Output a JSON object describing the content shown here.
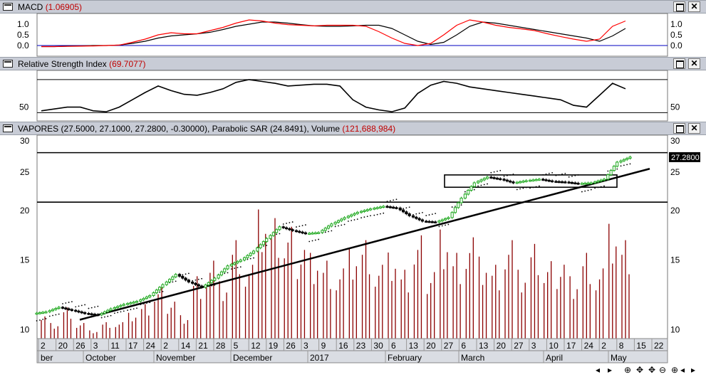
{
  "panels": {
    "macd": {
      "title": "MACD",
      "value": "(1.06905)",
      "ticks": [
        "1.0",
        "0.5",
        "0.0"
      ]
    },
    "rsi": {
      "title": "Relative Strength Index",
      "value": "(69.7077)",
      "ticks": [
        "50"
      ]
    },
    "price": {
      "title": "VAPORES (27.5000, 27.1000, 27.2800, -0.30000), Parabolic SAR (24.8491), Volume",
      "value": "(121,688,984)",
      "ticks": [
        "30",
        "25",
        "20",
        "15",
        "10"
      ],
      "last_price_label": "27.2800"
    }
  },
  "date_axis": {
    "day_labels": [
      "2",
      "20",
      "26",
      "3",
      "11",
      "17",
      "24",
      "2",
      "14",
      "21",
      "28",
      "5",
      "12",
      "19",
      "26",
      "3",
      "9",
      "16",
      "23",
      "30",
      "6",
      "13",
      "20",
      "27",
      "6",
      "13",
      "20",
      "27",
      "3",
      "10",
      "17",
      "24",
      "2",
      "8",
      "15",
      "22"
    ],
    "month_labels": [
      "ber",
      "October",
      "November",
      "December",
      "2017",
      "February",
      "March",
      "April",
      "May"
    ]
  },
  "nav_glyphs": [
    "◂",
    "▸",
    "⊕",
    "✥",
    "✥",
    "⊖",
    "⊕",
    "◂",
    "▸"
  ],
  "colors": {
    "up": "#22aa22",
    "down": "#000000",
    "volume": "#8b0000",
    "macd": "#000000",
    "signal": "#ff0000",
    "baseline": "#0000c0"
  },
  "chart_data": [
    {
      "type": "line",
      "name": "MACD",
      "ylim": [
        -0.1,
        1.3
      ],
      "series": [
        {
          "name": "MACD",
          "values": [
            -0.05,
            -0.05,
            -0.03,
            -0.02,
            0.0,
            0.0,
            0.02,
            0.1,
            0.2,
            0.35,
            0.45,
            0.5,
            0.55,
            0.62,
            0.75,
            0.9,
            1.0,
            1.1,
            1.1,
            1.05,
            0.98,
            0.92,
            0.9,
            0.9,
            0.92,
            0.95,
            0.95,
            0.8,
            0.5,
            0.2,
            0.05,
            0.15,
            0.5,
            0.9,
            1.1,
            1.05,
            0.95,
            0.85,
            0.75,
            0.65,
            0.55,
            0.45,
            0.35,
            0.2,
            0.45,
            0.8
          ]
        },
        {
          "name": "Signal",
          "values": [
            -0.05,
            -0.05,
            -0.04,
            -0.03,
            -0.02,
            0.0,
            0.02,
            0.15,
            0.3,
            0.5,
            0.6,
            0.55,
            0.55,
            0.7,
            0.85,
            1.05,
            1.2,
            1.15,
            1.05,
            0.98,
            0.95,
            0.92,
            0.95,
            0.95,
            0.95,
            0.9,
            0.65,
            0.35,
            0.1,
            0.0,
            0.1,
            0.5,
            0.95,
            1.2,
            1.1,
            0.95,
            0.85,
            0.78,
            0.7,
            0.55,
            0.42,
            0.3,
            0.2,
            0.3,
            0.9,
            1.15
          ]
        }
      ]
    },
    {
      "type": "line",
      "name": "RSI",
      "ylim": [
        35,
        90
      ],
      "reference_levels": [
        44,
        80
      ],
      "values": [
        46,
        48,
        50,
        50,
        46,
        45,
        50,
        58,
        66,
        73,
        68,
        64,
        63,
        66,
        70,
        77,
        80,
        78,
        76,
        73,
        74,
        75,
        75,
        73,
        58,
        50,
        47,
        45,
        49,
        65,
        74,
        78,
        76,
        72,
        70,
        68,
        66,
        64,
        62,
        60,
        58,
        52,
        50,
        63,
        76,
        70
      ]
    },
    {
      "type": "candlestick",
      "name": "VAPORES",
      "ylim": [
        9.5,
        31
      ],
      "y_scale": "log",
      "values": [
        11.1,
        11.4,
        11.2,
        11.0,
        10.9,
        11.3,
        11.6,
        11.8,
        12.2,
        13.0,
        13.8,
        13.2,
        12.8,
        13.5,
        14.5,
        15.0,
        15.8,
        17.0,
        18.2,
        17.8,
        17.5,
        17.6,
        18.5,
        19.2,
        19.8,
        20.2,
        20.5,
        20.3,
        19.4,
        18.8,
        18.7,
        19.2,
        21.5,
        23.5,
        24.3,
        24.0,
        23.5,
        23.8,
        24.0,
        23.7,
        23.6,
        23.4,
        23.5,
        24.0,
        26.5,
        27.3
      ],
      "horizontal_levels": [
        28.0,
        21.0
      ],
      "trendline": {
        "from": [
          10.6,
          "Oct 3"
        ],
        "to": [
          25.5,
          "May 22"
        ]
      }
    },
    {
      "type": "bar",
      "name": "Volume",
      "values": [
        3,
        2,
        4,
        2,
        1,
        2,
        2,
        3,
        4,
        6,
        5,
        3,
        8,
        10,
        7,
        12,
        9,
        15,
        14,
        13,
        12,
        11,
        10,
        9,
        11,
        12,
        9,
        10,
        8,
        12,
        9,
        14,
        11,
        13,
        10,
        9,
        12,
        8,
        11,
        9,
        10,
        8,
        11,
        9,
        14,
        12
      ]
    }
  ]
}
